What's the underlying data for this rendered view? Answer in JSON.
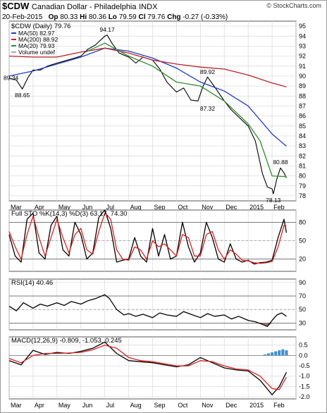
{
  "header": {
    "symbol": "$CDW",
    "description": "Canadian Dollar - Philadelphia",
    "exchange": "INDX",
    "stamp": "© StockCharts.com",
    "date": "20-Feb-2015",
    "op_label": "Op",
    "op": "80.33",
    "hi_label": "Hi",
    "hi": "80.36",
    "lo_label": "Lo",
    "lo": "79.59",
    "cl_label": "Cl",
    "cl": "79.76",
    "chg_label": "Chg",
    "chg": "-0.27 (-0.33%)"
  },
  "colors": {
    "price": "#000000",
    "ma50": "#1f3fbf",
    "ma200": "#c0202a",
    "ma20": "#2e8b2e",
    "rsi_fill": "#8b5a5a",
    "macd_hist": "#3a8fd0",
    "signal": "#e02020"
  },
  "chart_data": [
    {
      "type": "line",
      "title": "$CDW (Daily) 79.76",
      "legend": [
        {
          "name": "MA(50) 82.97",
          "color": "#1f3fbf"
        },
        {
          "name": "MA(200) 88.92",
          "color": "#c0202a"
        },
        {
          "name": "MA(20) 79.93",
          "color": "#2e8b2e"
        },
        {
          "name": "Volume undef",
          "color": "#aaaaaa"
        }
      ],
      "legend_position": "top-left",
      "ylim": [
        77.5,
        95.5
      ],
      "yticks": [
        78,
        79,
        80,
        81,
        82,
        83,
        84,
        85,
        86,
        87,
        88,
        89,
        90,
        91,
        92,
        93,
        94,
        95
      ],
      "x_months": [
        "Mar",
        "Apr",
        "May",
        "Jun",
        "Jul",
        "Aug",
        "Sep",
        "Oct",
        "Nov",
        "Dec",
        "2015",
        "Feb"
      ],
      "annotations": [
        {
          "label": "89.34",
          "x": 0.0,
          "y": 89.34
        },
        {
          "label": "88.65",
          "x": 0.55,
          "y": 88.65
        },
        {
          "label": "94.17",
          "x": 4.1,
          "y": 94.17
        },
        {
          "label": "89.92",
          "x": 8.3,
          "y": 89.92
        },
        {
          "label": "87.32",
          "x": 8.3,
          "y": 87.32
        },
        {
          "label": "80.88",
          "x": 11.35,
          "y": 80.88
        },
        {
          "label": "78.13",
          "x": 11.05,
          "y": 78.13
        }
      ],
      "series": [
        {
          "name": "$CDW",
          "x": [
            0,
            0.3,
            0.55,
            0.8,
            1.0,
            1.3,
            1.6,
            2.0,
            2.3,
            2.6,
            3.0,
            3.3,
            3.6,
            4.0,
            4.1,
            4.3,
            4.6,
            5.0,
            5.3,
            5.6,
            6.0,
            6.3,
            6.6,
            7.0,
            7.3,
            7.6,
            7.9,
            8.1,
            8.3,
            8.6,
            9.0,
            9.3,
            9.6,
            10.0,
            10.3,
            10.6,
            10.8,
            11.0,
            11.05,
            11.2,
            11.35,
            11.5,
            11.6
          ],
          "y": [
            89.8,
            89.6,
            88.7,
            89.9,
            90.6,
            90.6,
            91.0,
            91.3,
            91.5,
            91.7,
            92.0,
            92.7,
            93.1,
            94.0,
            94.1,
            93.3,
            92.3,
            91.9,
            91.3,
            91.9,
            91.6,
            90.7,
            89.4,
            88.4,
            88.8,
            87.6,
            87.5,
            88.9,
            89.9,
            88.9,
            87.5,
            86.6,
            85.9,
            85.0,
            83.5,
            80.2,
            78.9,
            78.7,
            78.2,
            79.7,
            80.8,
            80.3,
            79.8
          ]
        },
        {
          "name": "MA(50)",
          "x": [
            0,
            1,
            2,
            3,
            4,
            5,
            6,
            7,
            8,
            9,
            10,
            11,
            11.6
          ],
          "y": [
            90.0,
            90.5,
            91.2,
            91.9,
            92.8,
            92.5,
            91.8,
            90.8,
            89.4,
            88.5,
            87.0,
            84.2,
            82.97
          ]
        },
        {
          "name": "MA(200)",
          "x": [
            0,
            1,
            2,
            3,
            4,
            5,
            6,
            7,
            8,
            9,
            10,
            11,
            11.6
          ],
          "y": [
            92.0,
            91.9,
            91.9,
            92.4,
            92.8,
            92.3,
            91.6,
            91.2,
            90.9,
            90.7,
            90.1,
            89.3,
            88.92
          ]
        },
        {
          "name": "MA(20)",
          "x": [
            3.2,
            4,
            5,
            6,
            7,
            8,
            9,
            10,
            10.5,
            11,
            11.6
          ],
          "y": [
            92.4,
            93.3,
            92.0,
            91.0,
            89.4,
            89.0,
            87.5,
            85.2,
            83.5,
            80.0,
            79.93
          ]
        }
      ]
    },
    {
      "type": "line",
      "title": "Full STO %K(14,3) %D(3) 63.17, 74.30",
      "ylim": [
        0,
        100
      ],
      "yticks": [
        20,
        50,
        80
      ],
      "series": [
        {
          "name": "%K",
          "x": [
            0,
            0.25,
            0.5,
            0.75,
            1.0,
            1.25,
            1.5,
            1.75,
            2.0,
            2.25,
            2.5,
            2.75,
            3.0,
            3.25,
            3.5,
            3.75,
            4.0,
            4.25,
            4.5,
            4.75,
            5.0,
            5.25,
            5.5,
            5.75,
            6.0,
            6.25,
            6.5,
            6.75,
            7.0,
            7.25,
            7.5,
            7.75,
            8.0,
            8.25,
            8.5,
            8.75,
            9.0,
            9.25,
            9.5,
            9.75,
            10.0,
            10.25,
            10.5,
            10.75,
            11.0,
            11.25,
            11.5,
            11.6
          ],
          "y": [
            60,
            25,
            15,
            85,
            95,
            30,
            20,
            75,
            90,
            35,
            25,
            80,
            60,
            20,
            30,
            88,
            100,
            70,
            15,
            18,
            20,
            55,
            25,
            15,
            70,
            25,
            60,
            20,
            25,
            80,
            40,
            15,
            30,
            80,
            55,
            20,
            15,
            45,
            20,
            15,
            18,
            12,
            14,
            15,
            18,
            55,
            85,
            63
          ]
        },
        {
          "name": "%D",
          "x": [
            0,
            0.25,
            0.5,
            0.75,
            1.0,
            1.25,
            1.5,
            1.75,
            2.0,
            2.25,
            2.5,
            2.75,
            3.0,
            3.25,
            3.5,
            3.75,
            4.0,
            4.25,
            4.5,
            4.75,
            5.0,
            5.25,
            5.5,
            5.75,
            6.0,
            6.25,
            6.5,
            6.75,
            7.0,
            7.25,
            7.5,
            7.75,
            8.0,
            8.25,
            8.5,
            8.75,
            9.0,
            9.25,
            9.5,
            9.75,
            10.0,
            10.25,
            10.5,
            10.75,
            11.0,
            11.25,
            11.5,
            11.6
          ],
          "y": [
            65,
            40,
            20,
            60,
            90,
            55,
            25,
            55,
            85,
            55,
            30,
            60,
            70,
            35,
            28,
            65,
            95,
            85,
            35,
            20,
            18,
            40,
            35,
            20,
            50,
            40,
            45,
            35,
            25,
            60,
            55,
            25,
            25,
            60,
            65,
            35,
            20,
            35,
            28,
            18,
            17,
            14,
            13,
            14,
            16,
            40,
            75,
            74
          ]
        }
      ]
    },
    {
      "type": "line",
      "title": "RSI(14) 40.46",
      "ylim": [
        20,
        95
      ],
      "yticks": [
        30,
        50,
        70,
        90
      ],
      "series": [
        {
          "name": "RSI",
          "x": [
            0,
            0.3,
            0.6,
            1.0,
            1.3,
            1.6,
            2.0,
            2.3,
            2.6,
            3.0,
            3.3,
            3.6,
            4.0,
            4.2,
            4.5,
            4.8,
            5.0,
            5.3,
            5.6,
            6.0,
            6.3,
            6.6,
            7.0,
            7.3,
            7.6,
            8.0,
            8.3,
            8.6,
            9.0,
            9.3,
            9.6,
            10.0,
            10.3,
            10.6,
            10.8,
            11.0,
            11.2,
            11.4,
            11.6
          ],
          "y": [
            55,
            48,
            60,
            52,
            58,
            55,
            60,
            56,
            62,
            58,
            63,
            66,
            72,
            66,
            50,
            42,
            44,
            40,
            43,
            38,
            45,
            42,
            40,
            47,
            43,
            38,
            44,
            40,
            42,
            36,
            40,
            34,
            32,
            28,
            25,
            34,
            42,
            45,
            40
          ]
        }
      ]
    },
    {
      "type": "line",
      "title": "MACD(12,26,9) -0.809, -1.053, 0.245",
      "ylim": [
        -2.1,
        0.9
      ],
      "yticks": [
        -2.0,
        -1.5,
        -1.0,
        -0.5,
        0.0,
        0.5
      ],
      "series": [
        {
          "name": "MACD",
          "x": [
            0,
            0.5,
            1.0,
            1.5,
            2.0,
            2.5,
            3.0,
            3.5,
            4.0,
            4.5,
            5.0,
            5.5,
            6.0,
            6.5,
            7.0,
            7.5,
            8.0,
            8.5,
            9.0,
            9.5,
            10.0,
            10.5,
            11.0,
            11.3,
            11.6
          ],
          "y": [
            -0.25,
            -0.45,
            0.25,
            0.05,
            0.15,
            0.1,
            0.2,
            0.35,
            0.65,
            0.1,
            -0.25,
            -0.3,
            -0.35,
            -0.45,
            -0.55,
            -0.45,
            -0.1,
            -0.35,
            -0.6,
            -0.7,
            -0.75,
            -1.2,
            -1.9,
            -1.5,
            -0.81
          ]
        },
        {
          "name": "Signal",
          "x": [
            0,
            0.5,
            1.0,
            1.5,
            2.0,
            2.5,
            3.0,
            3.5,
            4.0,
            4.5,
            5.0,
            5.5,
            6.0,
            6.5,
            7.0,
            7.5,
            8.0,
            8.5,
            9.0,
            9.5,
            10.0,
            10.5,
            11.0,
            11.3,
            11.6
          ],
          "y": [
            -0.15,
            -0.35,
            0.0,
            0.1,
            0.1,
            0.12,
            0.15,
            0.28,
            0.5,
            0.35,
            -0.1,
            -0.25,
            -0.3,
            -0.4,
            -0.5,
            -0.5,
            -0.25,
            -0.3,
            -0.5,
            -0.65,
            -0.7,
            -1.0,
            -1.6,
            -1.65,
            -1.05
          ]
        },
        {
          "name": "Histogram",
          "x": [
            10.7,
            10.85,
            11.0,
            11.15,
            11.3,
            11.45,
            11.6
          ],
          "y": [
            0.05,
            0.1,
            0.15,
            0.2,
            0.25,
            0.3,
            0.25
          ]
        }
      ]
    }
  ]
}
